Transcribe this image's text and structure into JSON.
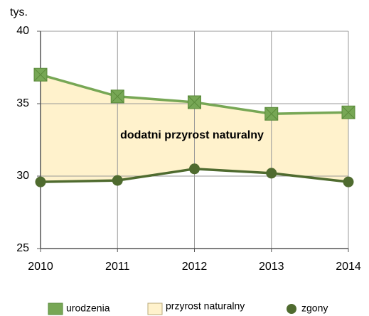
{
  "chart_data": {
    "type": "line",
    "y_unit_label": "tys.",
    "annotation": "dodatni przyrost naturalny",
    "x": [
      2010,
      2011,
      2012,
      2013,
      2014
    ],
    "xlim": [
      2010,
      2014
    ],
    "xticks": [
      2010,
      2011,
      2012,
      2013,
      2014
    ],
    "ylim": [
      25,
      40
    ],
    "yticks": [
      25,
      30,
      35,
      40
    ],
    "grid": true,
    "area": {
      "name": "przyrost naturalny",
      "color": "#fff2cc"
    },
    "series": [
      {
        "name": "urodzenia",
        "color": "#77a755",
        "marker": "square",
        "values": [
          37.0,
          35.5,
          35.1,
          34.3,
          34.4
        ]
      },
      {
        "name": "zgony",
        "color": "#4f6b2f",
        "marker": "circle",
        "values": [
          29.6,
          29.7,
          30.5,
          30.2,
          29.6
        ]
      }
    ]
  }
}
